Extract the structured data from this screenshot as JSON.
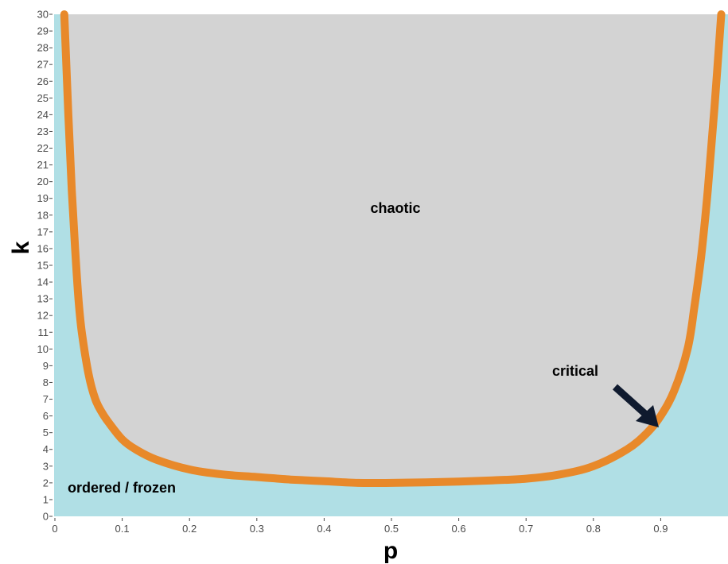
{
  "chart_data": {
    "type": "area",
    "xlabel": "p",
    "ylabel": "k",
    "xlim": [
      0,
      1
    ],
    "ylim": [
      0,
      30
    ],
    "x_ticks": [
      "0",
      "0.1",
      "0.2",
      "0.3",
      "0.4",
      "0.5",
      "0.6",
      "0.7",
      "0.8",
      "0.9"
    ],
    "y_ticks": [
      "0",
      "1",
      "2",
      "3",
      "4",
      "5",
      "6",
      "7",
      "8",
      "9",
      "10",
      "11",
      "12",
      "13",
      "14",
      "15",
      "16",
      "17",
      "18",
      "19",
      "20",
      "21",
      "22",
      "23",
      "24",
      "25",
      "26",
      "27",
      "28",
      "29",
      "30"
    ],
    "grid": false,
    "series": [
      {
        "x": [
          0.014,
          0.02,
          0.025,
          0.03,
          0.035,
          0.04,
          0.05,
          0.06,
          0.07,
          0.08,
          0.1,
          0.12,
          0.15,
          0.2,
          0.25,
          0.3,
          0.35,
          0.4,
          0.45,
          0.5,
          0.55,
          0.6,
          0.65,
          0.7,
          0.75,
          0.8,
          0.85,
          0.88,
          0.9,
          0.92,
          0.94,
          0.95,
          0.96,
          0.97,
          0.98,
          0.99
        ],
        "y": [
          30,
          24,
          19.5,
          16,
          13,
          11,
          8.5,
          7,
          6.2,
          5.6,
          4.6,
          4.0,
          3.4,
          2.8,
          2.5,
          2.35,
          2.2,
          2.1,
          2.0,
          2.0,
          2.03,
          2.08,
          2.15,
          2.25,
          2.5,
          3.0,
          4.0,
          5.0,
          6.0,
          7.5,
          10,
          12.5,
          15.5,
          19.5,
          24.5,
          30
        ]
      }
    ],
    "regions": {
      "chaotic": "chaotic",
      "ordered": "ordered / frozen",
      "critical": "critical"
    },
    "colors": {
      "chaotic_fill": "#d3d3d3",
      "ordered_fill": "#b0dfe5",
      "curve": "#e8892a",
      "arrow": "#0f1a2e"
    }
  }
}
